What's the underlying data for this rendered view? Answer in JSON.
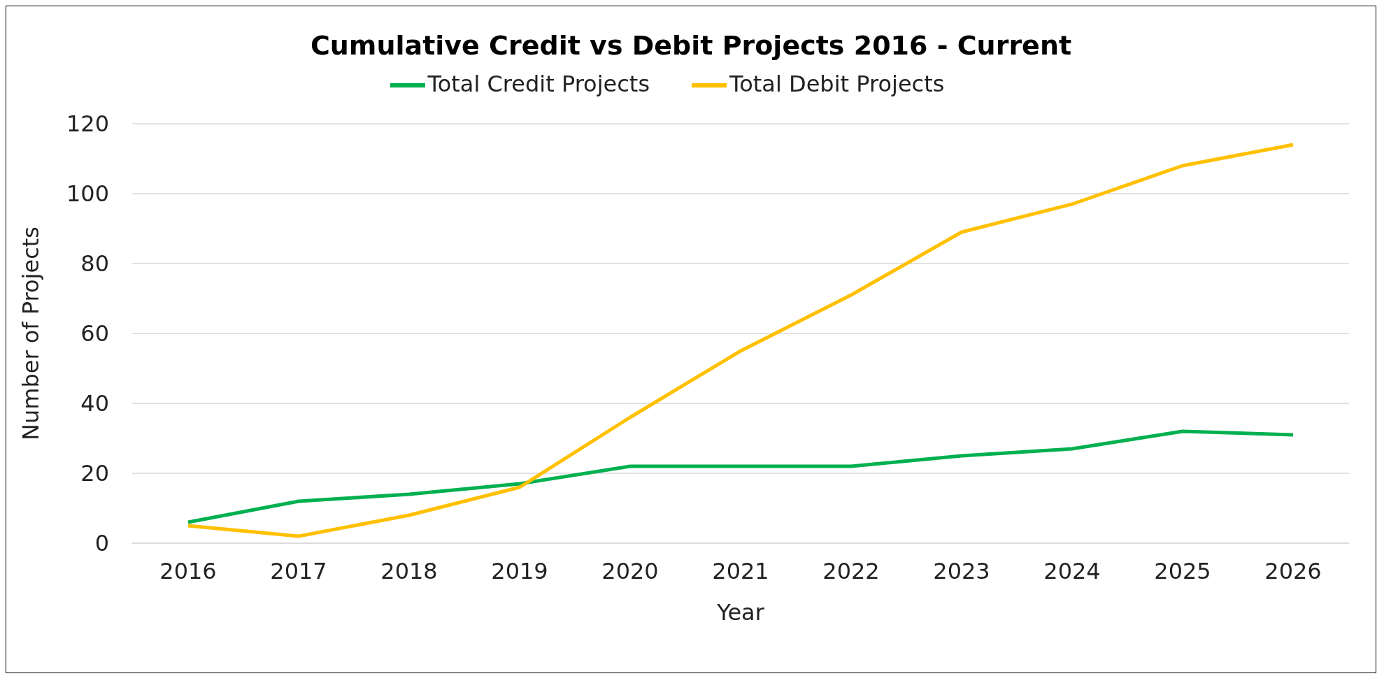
{
  "chart_data": {
    "type": "line",
    "title": "Cumulative Credit vs Debit Projects 2016 - Current",
    "xlabel": "Year",
    "ylabel": "Number of Projects",
    "categories": [
      "2016",
      "2017",
      "2018",
      "2019",
      "2020",
      "2021",
      "2022",
      "2023",
      "2024",
      "2025",
      "2026"
    ],
    "series": [
      {
        "name": "Total Credit Projects",
        "color": "#00b050",
        "values": [
          6,
          12,
          14,
          17,
          22,
          22,
          22,
          25,
          27,
          32,
          31
        ]
      },
      {
        "name": "Total Debit Projects",
        "color": "#ffc000",
        "values": [
          5,
          2,
          8,
          16,
          36,
          55,
          71,
          89,
          97,
          108,
          114
        ]
      }
    ],
    "ylim": [
      0,
      120
    ],
    "yticks": [
      0,
      20,
      40,
      60,
      80,
      100,
      120
    ],
    "grid": "y",
    "legend": "top",
    "marker": "none",
    "line_style": "solid"
  }
}
